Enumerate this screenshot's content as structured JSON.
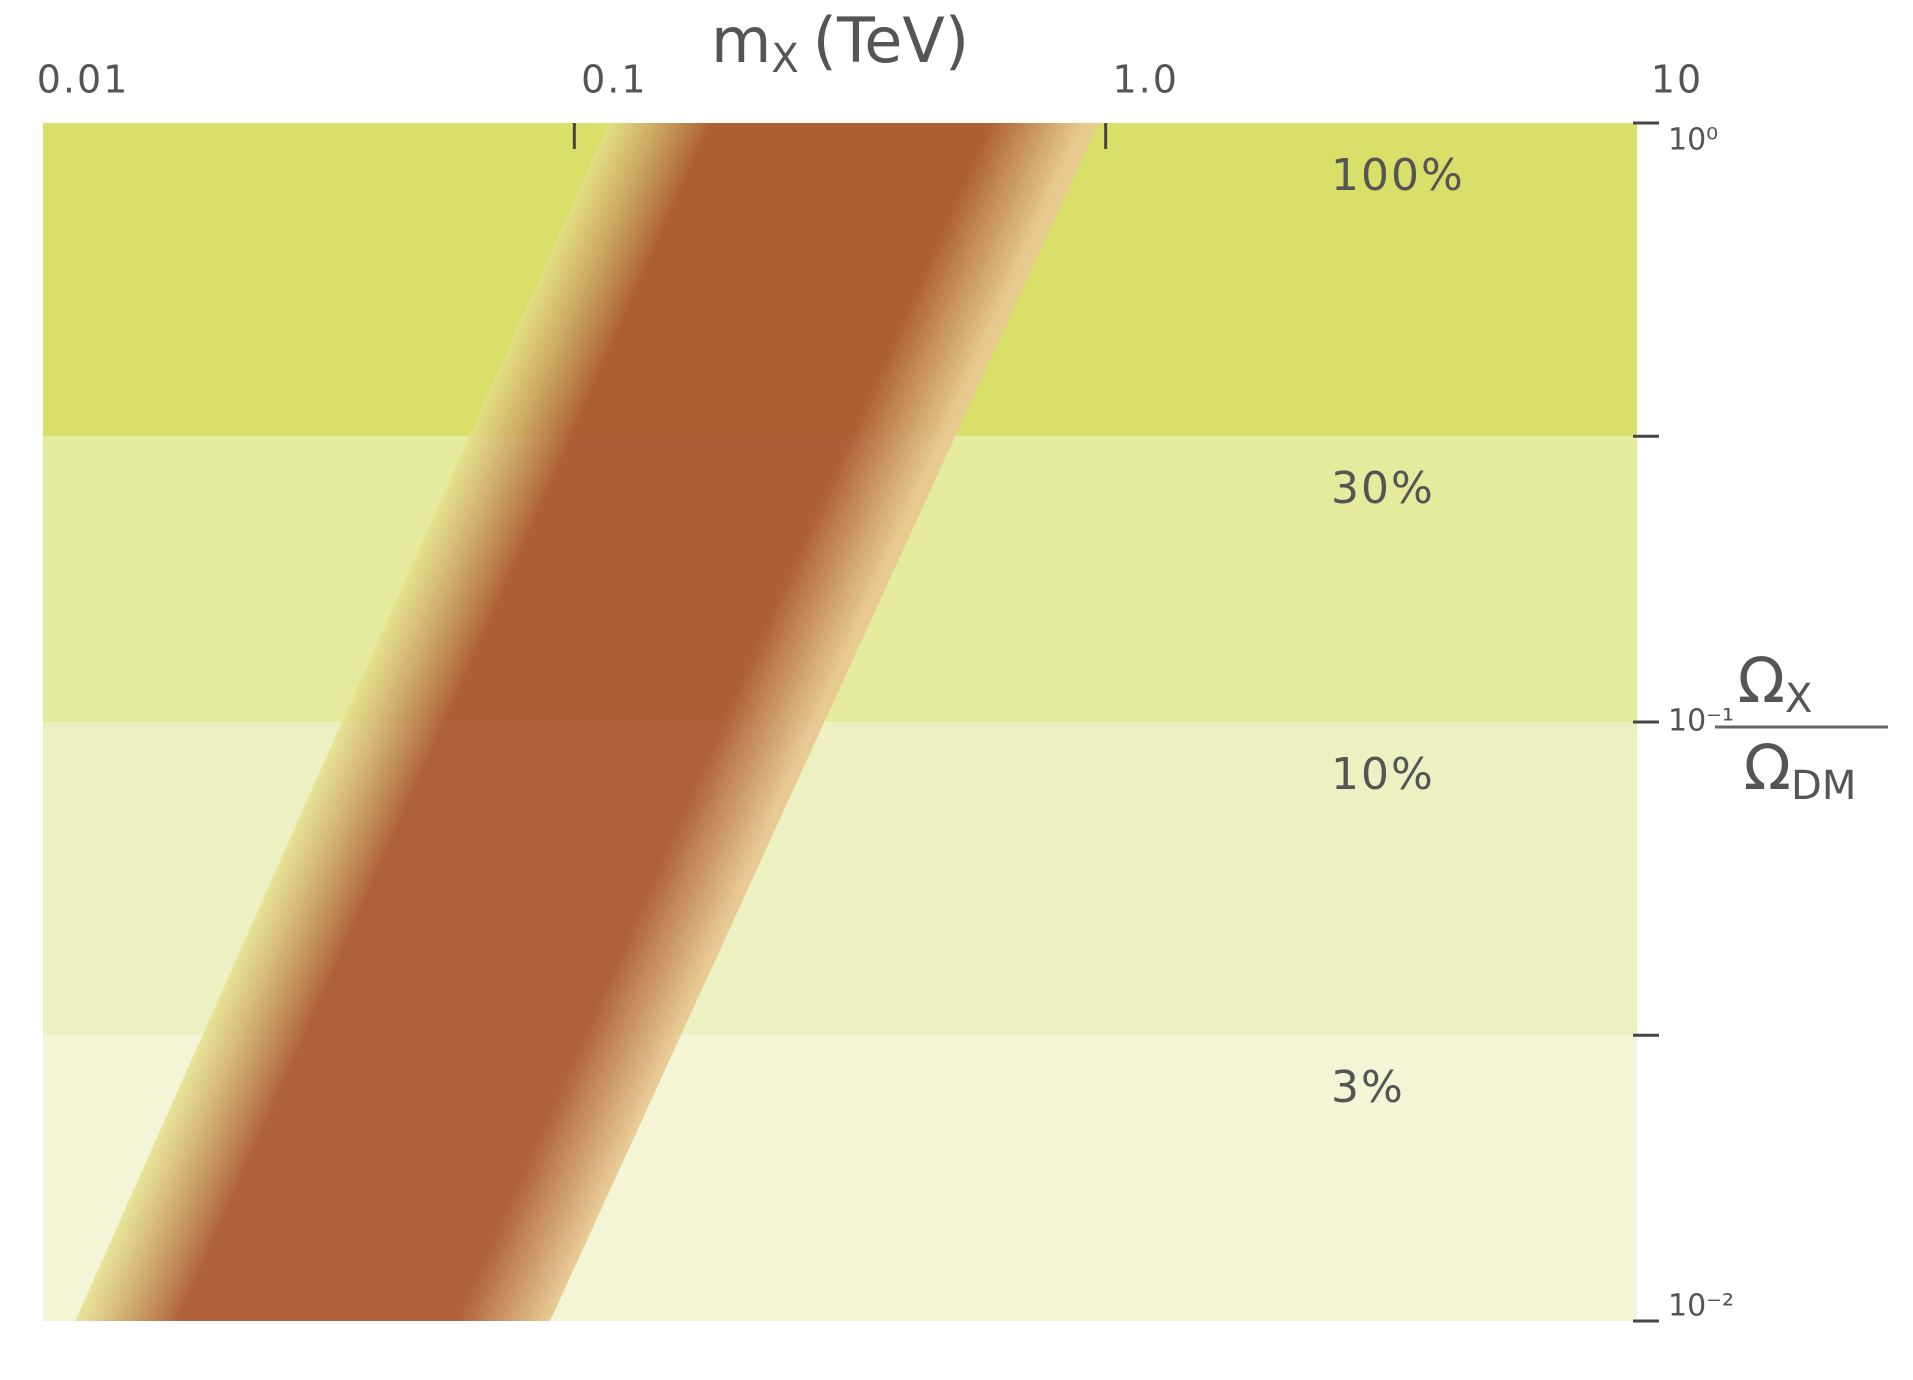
{
  "chart_data": {
    "type": "band-region",
    "x_label": {
      "main": "m",
      "sub": "X",
      "unit": "(TeV)"
    },
    "y_label": {
      "numerator": "Ω",
      "numerator_sub": "X",
      "denominator": "Ω",
      "denominator_sub": "DM"
    },
    "xscale": "log",
    "yscale": "log",
    "xlim": [
      0.01,
      10
    ],
    "ylim": [
      0.01,
      1
    ],
    "xticks": [
      0.01,
      0.1,
      {
        "value": 1,
        "label": "1.0"
      },
      10
    ],
    "yticks": [
      {
        "value": 1,
        "label": "10⁰"
      },
      {
        "value": 0.1,
        "label": "10⁻¹"
      },
      {
        "value": 0.01,
        "label": "10⁻²"
      }
    ],
    "bands": [
      {
        "label": "100%",
        "range": [
          0.3,
          1
        ],
        "color": "#d8e06a"
      },
      {
        "label": "30%",
        "range": [
          0.1,
          0.3
        ],
        "color": "#e4eb9d"
      },
      {
        "label": "10%",
        "range": [
          0.03,
          0.1
        ],
        "color": "#edf1c1"
      },
      {
        "label": "3%",
        "range": [
          0.01,
          0.03
        ],
        "color": "#f3f5d6"
      }
    ],
    "band": {
      "y": [
        0.01,
        1
      ],
      "x_low": [
        0.0115,
        0.116
      ],
      "x_high": [
        0.09,
        0.97
      ],
      "color": "#a9532e"
    }
  }
}
